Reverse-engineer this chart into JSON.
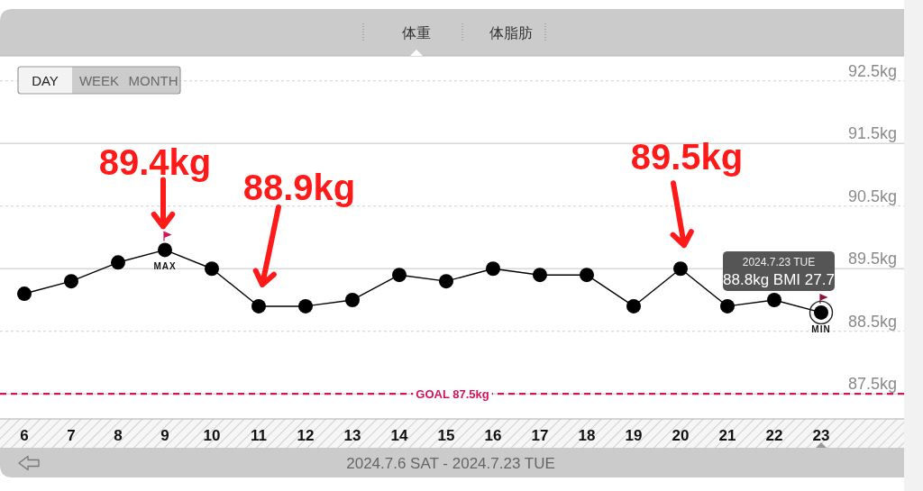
{
  "chart_data": {
    "type": "line",
    "title": "体重",
    "xlabel": "2024.7.6 SAT - 2024.7.23 TUE",
    "categories": [
      "6",
      "7",
      "8",
      "9",
      "10",
      "11",
      "12",
      "13",
      "14",
      "15",
      "16",
      "17",
      "18",
      "19",
      "20",
      "21",
      "22",
      "23"
    ],
    "series": [
      {
        "color": "#000000",
        "values": [
          89.1,
          89.3,
          89.6,
          89.8,
          89.5,
          88.9,
          88.9,
          89.0,
          89.4,
          89.3,
          89.5,
          89.4,
          89.4,
          88.9,
          89.5,
          88.9,
          89.0,
          88.8
        ]
      }
    ],
    "ylim": [
      87.1,
      92.9
    ],
    "yticks": [
      {
        "value": 87.5,
        "label": "87.5kg"
      },
      {
        "value": 88.5,
        "label": "88.5kg"
      },
      {
        "value": 89.5,
        "label": "89.5kg"
      },
      {
        "value": 90.5,
        "label": "90.5kg"
      },
      {
        "value": 91.5,
        "label": "91.5kg"
      },
      {
        "value": 92.5,
        "label": "92.5kg"
      }
    ],
    "grid": "y",
    "marker": "circle",
    "line_style": "solid",
    "ref_lines": [
      {
        "axis": "y",
        "value": 87.5,
        "label": "GOAL 87.5kg",
        "color": "#d4145a",
        "line_style": "dashed"
      }
    ],
    "annotations": [
      "体脂肪",
      "DAY",
      "WEEK",
      "MONTH",
      {
        "text": "MAX",
        "x": "9",
        "y": 89.8
      },
      {
        "text": "MIN",
        "x": "23",
        "y": 88.8
      },
      "2024.7.23 TUE",
      {
        "text": "88.8kg BMI 27.7",
        "x": "23",
        "y": 88.8
      },
      {
        "text": "89.4kg",
        "x": "9",
        "y": 89.8
      },
      {
        "text": "88.9kg",
        "x": "11",
        "y": 88.9
      },
      {
        "text": "89.5kg",
        "x": "20",
        "y": 89.5
      }
    ]
  }
}
